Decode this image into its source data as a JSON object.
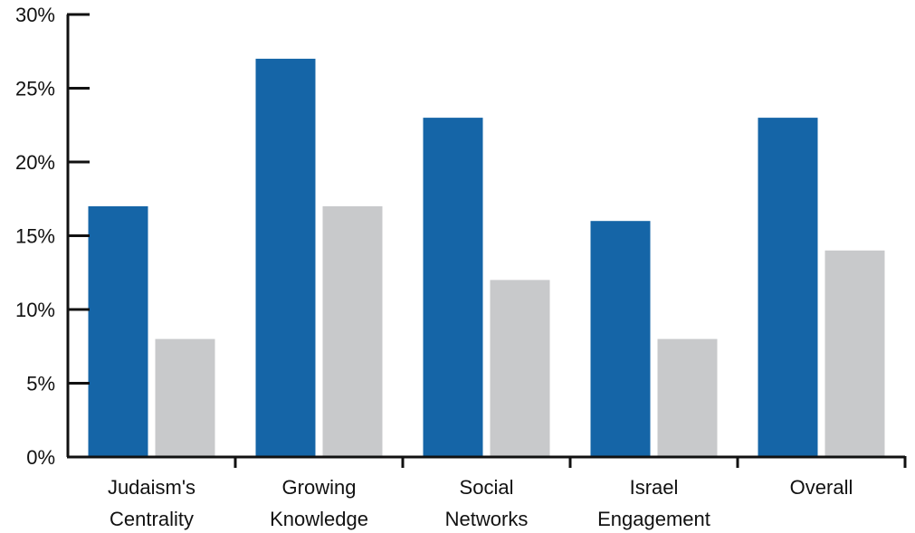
{
  "chart_data": {
    "type": "bar",
    "categories": [
      [
        "Judaism's",
        "Centrality"
      ],
      [
        "Growing",
        "Knowledge"
      ],
      [
        "Social",
        "Networks"
      ],
      [
        "Israel",
        "Engagement"
      ],
      [
        "Overall"
      ]
    ],
    "series": [
      {
        "values": [
          17,
          27,
          23,
          16,
          23
        ],
        "color": "#1565a7"
      },
      {
        "values": [
          8,
          17,
          12,
          8,
          14
        ],
        "color": "#c8c9cb"
      }
    ],
    "y_ticks": [
      0,
      5,
      10,
      15,
      20,
      25,
      30
    ],
    "y_tick_suffix": "%",
    "ylim": [
      0,
      30
    ],
    "grid": false,
    "legend": "none"
  }
}
